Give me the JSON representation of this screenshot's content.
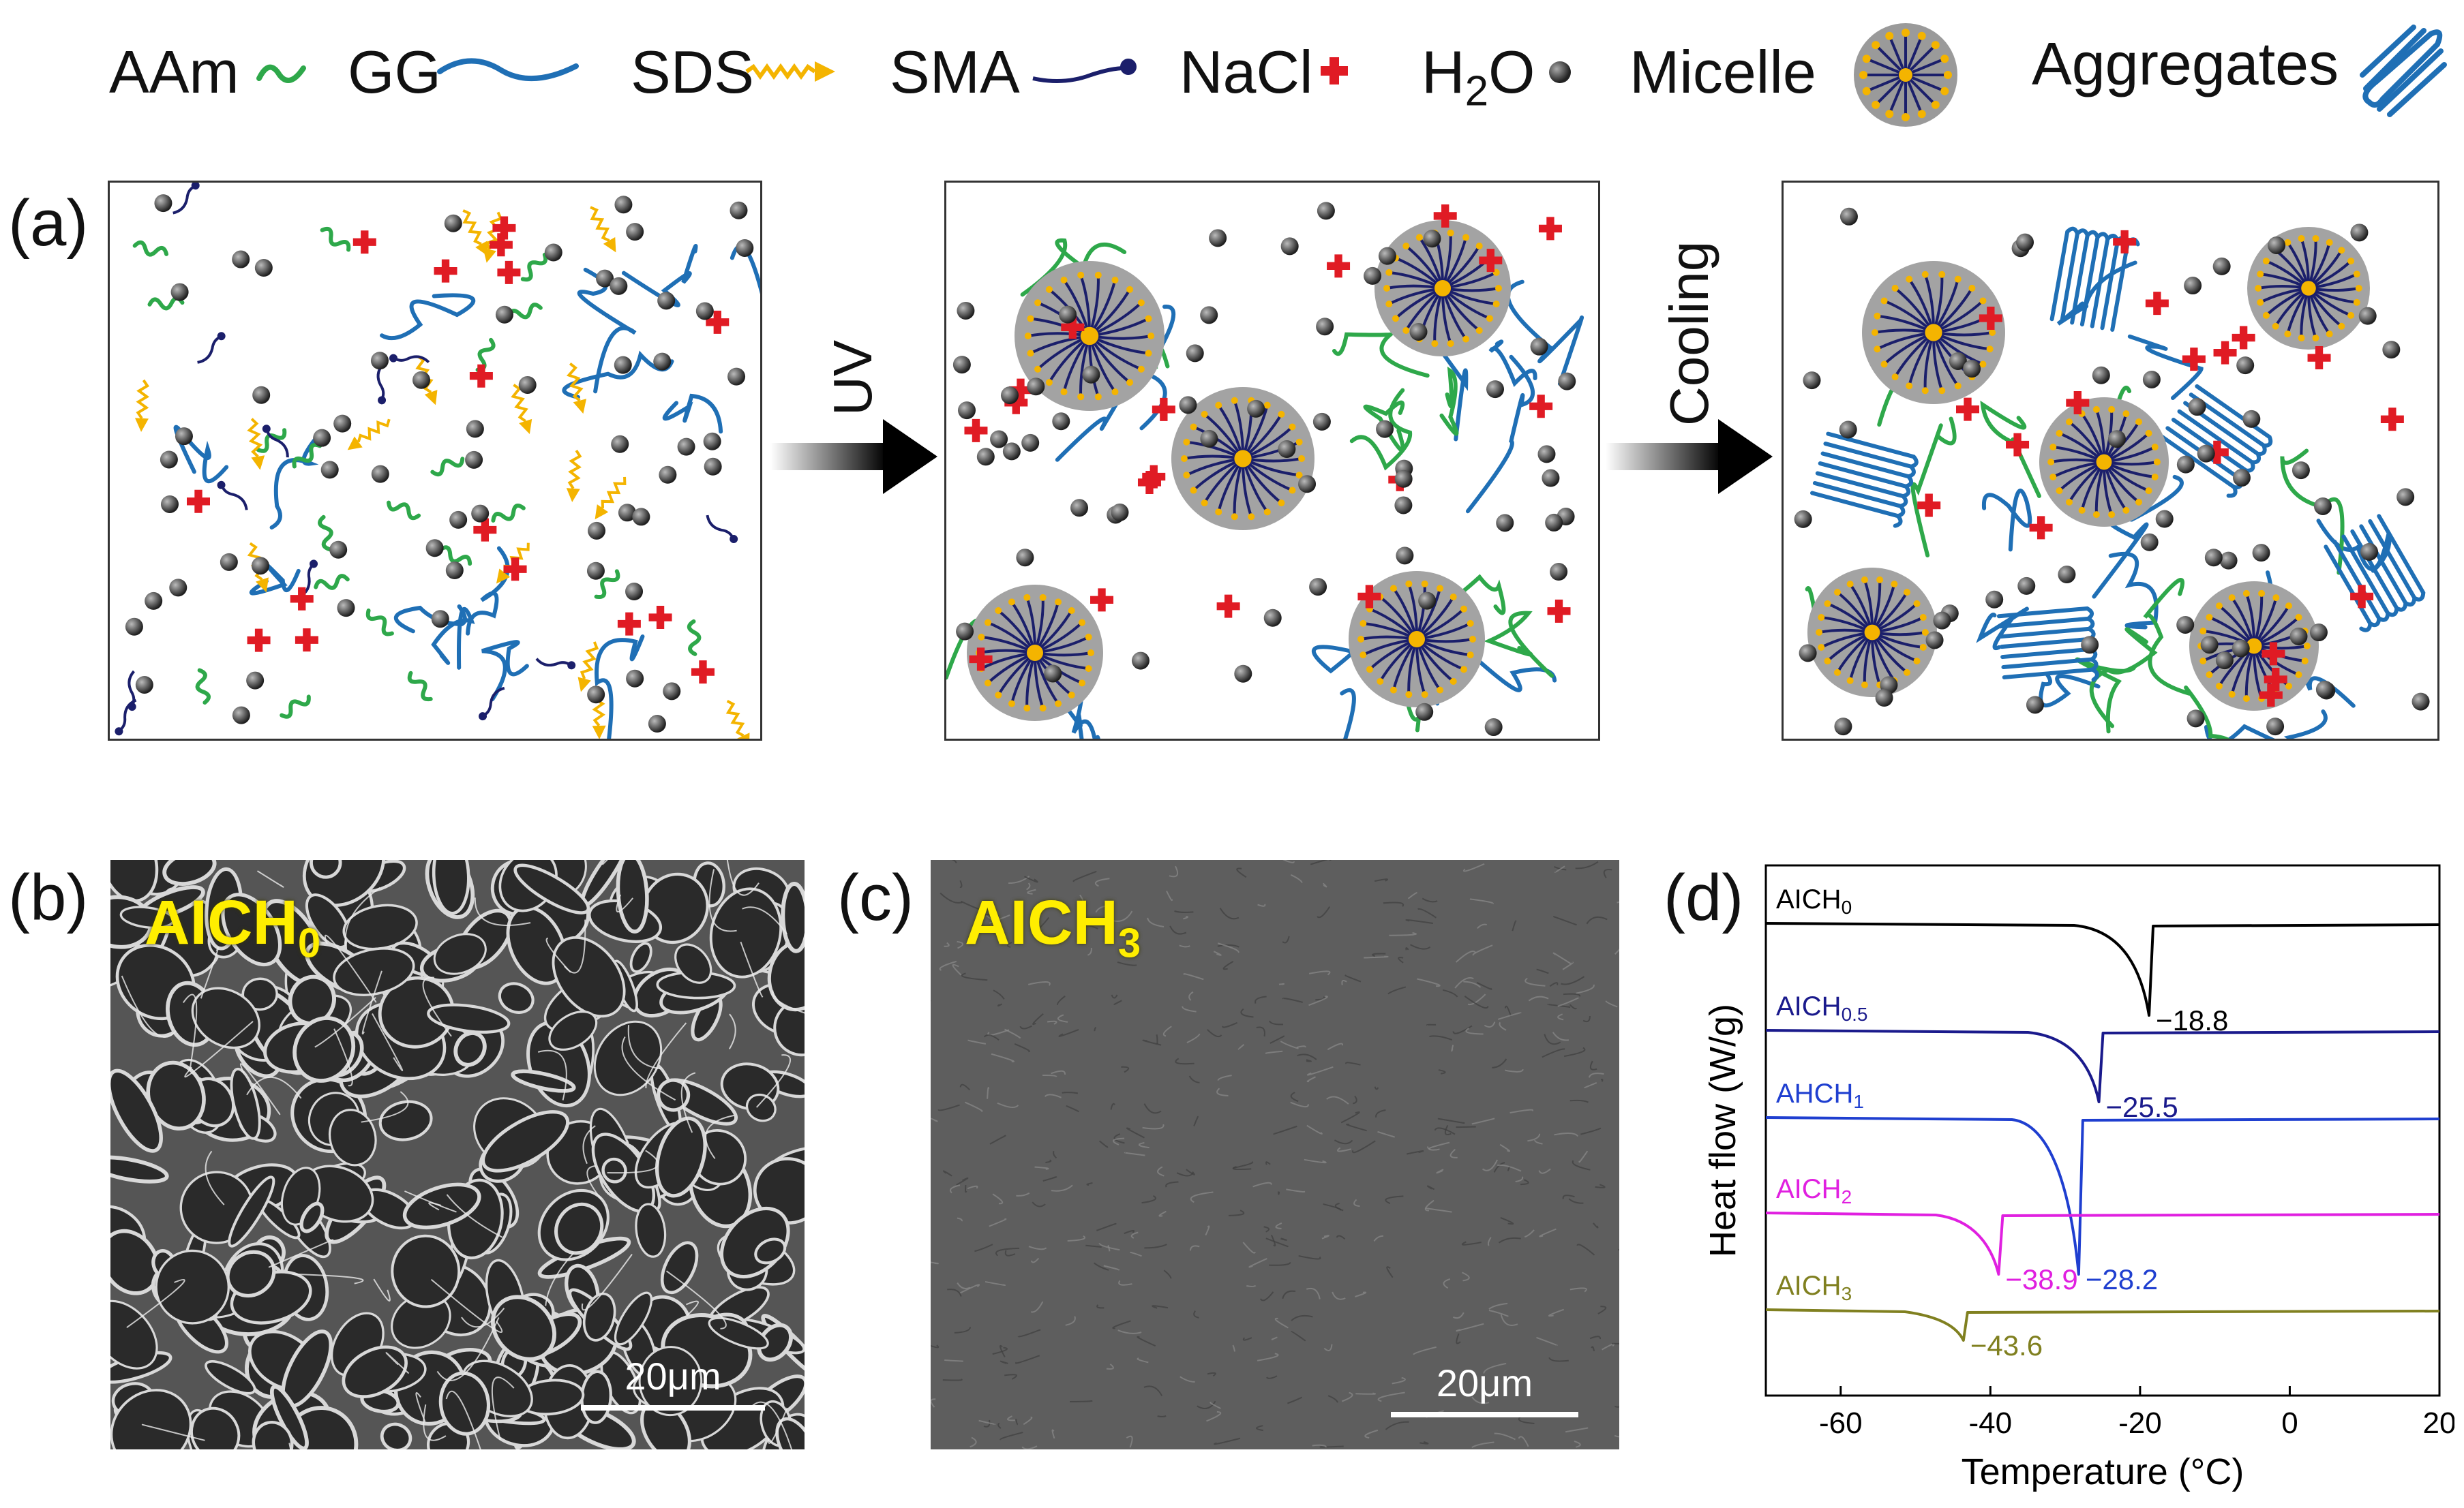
{
  "legend": [
    {
      "label": "AAm",
      "icon": "aam-chain-icon",
      "color": "#2ea84a"
    },
    {
      "label": "GG",
      "icon": "gg-chain-icon",
      "color": "#1f6fb5"
    },
    {
      "label": "SDS",
      "icon": "sds-surfactant-icon",
      "color": "#f4b400"
    },
    {
      "label": "SMA",
      "icon": "sma-monomer-icon",
      "color": "#1b1f6b"
    },
    {
      "label": "NaCl",
      "icon": "nacl-cross-icon",
      "color": "#e01b24"
    },
    {
      "label_main": "H",
      "label_sub": "2",
      "label_end": "O",
      "icon": "water-sphere-icon",
      "color": "#333333"
    },
    {
      "label": "Micelle",
      "icon": "micelle-icon",
      "color": "#9a9a9a"
    },
    {
      "label": "Aggregates",
      "icon": "aggregates-icon",
      "color": "#1f6fb5"
    }
  ],
  "panel_labels": {
    "a": "(a)",
    "b": "(b)",
    "c": "(c)",
    "d": "(d)"
  },
  "arrows": {
    "uv": "UV",
    "cooling": "Cooling"
  },
  "sem_b": {
    "tag_main": "AICH",
    "tag_sub": "0",
    "scale": "20μm"
  },
  "sem_c": {
    "tag_main": "AICH",
    "tag_sub": "3",
    "scale": "20μm"
  },
  "chart_data": {
    "type": "line",
    "xlabel": "Temperature (°C)",
    "ylabel": "Heat flow (W/g)",
    "xlim": [
      -70,
      20
    ],
    "xticks": [
      -60,
      -40,
      -20,
      0,
      20
    ],
    "series": [
      {
        "name_main": "AICH",
        "name_sub": "0",
        "color": "#000000",
        "peak_temp": -18.8,
        "peak_label": "−18.8"
      },
      {
        "name_main": "AICH",
        "name_sub": "0.5",
        "color": "#1a1a8c",
        "peak_temp": -25.5,
        "peak_label": "−25.5"
      },
      {
        "name_main": "AHCH",
        "name_sub": "1",
        "color": "#1f3fd0",
        "peak_temp": -28.2,
        "peak_label": "−28.2"
      },
      {
        "name_main": "AICH",
        "name_sub": "2",
        "color": "#e020e0",
        "peak_temp": -38.9,
        "peak_label": "−38.9"
      },
      {
        "name_main": "AICH",
        "name_sub": "3",
        "color": "#808020",
        "peak_temp": -43.6,
        "peak_label": "−43.6"
      }
    ]
  }
}
